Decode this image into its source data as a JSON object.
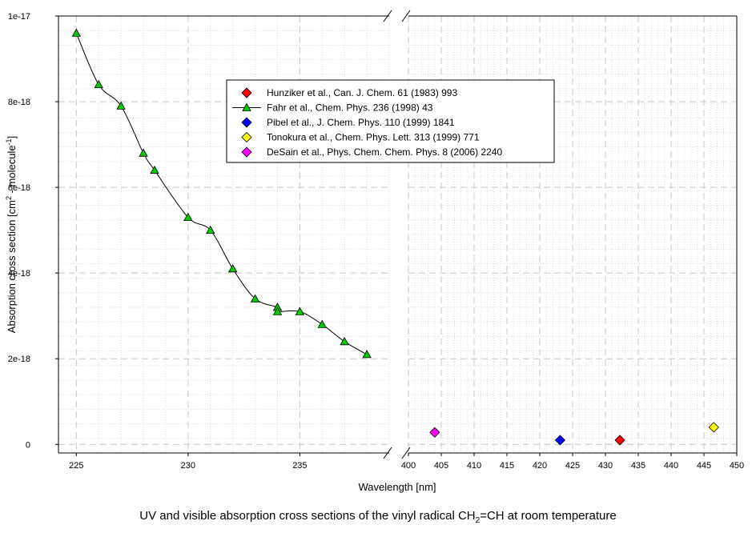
{
  "chart_data": {
    "type": "scatter",
    "title": "",
    "xlabel": "Wavelength [nm]",
    "ylabel": "Absorption cross section [cm2 - molecule-1]",
    "x_axis_break": true,
    "x_segments": [
      {
        "xlim": [
          224.2,
          239.0
        ],
        "ticks": [
          "225",
          "230",
          "235"
        ],
        "tick_values": [
          225,
          230,
          235
        ]
      },
      {
        "xlim": [
          400,
          450
        ],
        "ticks": [
          "400",
          "405",
          "410",
          "415",
          "420",
          "425",
          "430",
          "435",
          "440",
          "445",
          "450"
        ],
        "tick_values": [
          400,
          405,
          410,
          415,
          420,
          425,
          430,
          435,
          440,
          445,
          450
        ]
      }
    ],
    "ylim": [
      -2e-19,
      1e-17
    ],
    "y_ticks": [
      "0",
      "2e-18",
      "4e-18",
      "6e-18",
      "8e-18",
      "1e-17"
    ],
    "y_tick_values": [
      0,
      2e-18,
      4e-18,
      6e-18,
      8e-18,
      1e-17
    ],
    "grid": true,
    "legend_position": "top-center",
    "series": [
      {
        "name": "Hunziker et al., Can. J. Chem. 61 (1983) 993",
        "marker": "diamond",
        "color": "#ff0000",
        "line": false,
        "points": [
          [
            432.2,
            1e-19
          ]
        ]
      },
      {
        "name": "Fahr et al., Chem. Phys. 236 (1998) 43",
        "marker": "triangle",
        "color": "#00cc00",
        "line": true,
        "points": [
          [
            225,
            9.6e-18
          ],
          [
            226,
            8.4e-18
          ],
          [
            227,
            7.9e-18
          ],
          [
            228,
            6.8e-18
          ],
          [
            228.5,
            6.4e-18
          ],
          [
            230,
            5.3e-18
          ],
          [
            231,
            5e-18
          ],
          [
            232,
            4.1e-18
          ],
          [
            233,
            3.4e-18
          ],
          [
            234,
            3.2e-18
          ],
          [
            234,
            3.1e-18
          ],
          [
            235,
            3.1e-18
          ],
          [
            236,
            2.8e-18
          ],
          [
            237,
            2.4e-18
          ],
          [
            238,
            2.1e-18
          ]
        ]
      },
      {
        "name": "Pibel et al., J. Chem. Phys. 110 (1999) 1841",
        "marker": "diamond",
        "color": "#0000ff",
        "line": false,
        "points": [
          [
            423.1,
            1e-19
          ]
        ]
      },
      {
        "name": "Tonokura et al., Chem. Phys. Lett. 313 (1999) 771",
        "marker": "diamond",
        "color": "#ffff00",
        "line": false,
        "points": [
          [
            446.5,
            4e-19
          ]
        ]
      },
      {
        "name": "DeSain et al., Phys. Chem. Chem. Phys. 8 (2006) 2240",
        "marker": "diamond",
        "color": "#ff00ff",
        "line": false,
        "points": [
          [
            404,
            2.8e-19
          ]
        ]
      }
    ]
  },
  "caption": {
    "pre": "UV and visible absorption cross sections of the vinyl radical CH",
    "sub": "2",
    "post": "=CH at room temperature"
  },
  "ylabel_parts": {
    "a": "Absorption cross section [cm",
    "sup1": "2",
    "b": " - molecule",
    "sup2": "-1",
    "c": "]"
  }
}
